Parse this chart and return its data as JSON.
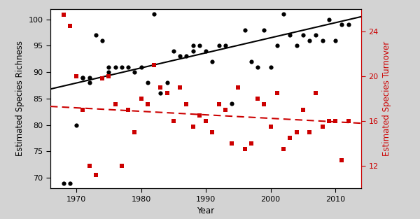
{
  "xlabel": "Year",
  "ylabel_left": "Estimated Species Richness",
  "ylabel_right": "Estimated Species Turnover",
  "xlim": [
    1966,
    2014
  ],
  "ylim_left": [
    68,
    102
  ],
  "ylim_right": [
    10,
    26
  ],
  "xticks": [
    1970,
    1980,
    1990,
    2000,
    2010
  ],
  "yticks_left": [
    70,
    75,
    80,
    85,
    90,
    95,
    100
  ],
  "yticks_right": [
    12,
    16,
    20,
    24
  ],
  "richness_points": [
    [
      1968,
      69
    ],
    [
      1969,
      69
    ],
    [
      1970,
      80
    ],
    [
      1971,
      89
    ],
    [
      1971,
      89
    ],
    [
      1972,
      89
    ],
    [
      1972,
      88
    ],
    [
      1973,
      97
    ],
    [
      1974,
      96
    ],
    [
      1975,
      91
    ],
    [
      1975,
      90
    ],
    [
      1976,
      91
    ],
    [
      1977,
      91
    ],
    [
      1978,
      91
    ],
    [
      1979,
      90
    ],
    [
      1980,
      91
    ],
    [
      1981,
      88
    ],
    [
      1982,
      101
    ],
    [
      1983,
      86
    ],
    [
      1984,
      88
    ],
    [
      1985,
      94
    ],
    [
      1986,
      93
    ],
    [
      1987,
      93
    ],
    [
      1988,
      95
    ],
    [
      1988,
      94
    ],
    [
      1989,
      95
    ],
    [
      1990,
      94
    ],
    [
      1991,
      92
    ],
    [
      1992,
      95
    ],
    [
      1993,
      95
    ],
    [
      1994,
      84
    ],
    [
      1996,
      98
    ],
    [
      1997,
      92
    ],
    [
      1998,
      91
    ],
    [
      1999,
      98
    ],
    [
      2000,
      91
    ],
    [
      2001,
      95
    ],
    [
      2002,
      101
    ],
    [
      2003,
      97
    ],
    [
      2004,
      95
    ],
    [
      2005,
      97
    ],
    [
      2006,
      96
    ],
    [
      2007,
      97
    ],
    [
      2008,
      96
    ],
    [
      2009,
      100
    ],
    [
      2010,
      96
    ],
    [
      2011,
      99
    ],
    [
      2012,
      99
    ]
  ],
  "turnover_points": [
    [
      1968,
      25.5
    ],
    [
      1969,
      24.5
    ],
    [
      1970,
      20.0
    ],
    [
      1971,
      17.0
    ],
    [
      1972,
      12.0
    ],
    [
      1973,
      11.2
    ],
    [
      1974,
      19.8
    ],
    [
      1975,
      20.0
    ],
    [
      1976,
      17.5
    ],
    [
      1977,
      12.0
    ],
    [
      1978,
      17.0
    ],
    [
      1979,
      15.0
    ],
    [
      1980,
      18.0
    ],
    [
      1981,
      17.5
    ],
    [
      1982,
      21.0
    ],
    [
      1983,
      19.0
    ],
    [
      1984,
      18.5
    ],
    [
      1985,
      16.0
    ],
    [
      1986,
      19.0
    ],
    [
      1987,
      17.5
    ],
    [
      1988,
      15.5
    ],
    [
      1989,
      16.5
    ],
    [
      1990,
      16.0
    ],
    [
      1991,
      15.0
    ],
    [
      1992,
      17.5
    ],
    [
      1993,
      17.0
    ],
    [
      1994,
      14.0
    ],
    [
      1995,
      19.0
    ],
    [
      1996,
      13.5
    ],
    [
      1997,
      14.0
    ],
    [
      1998,
      18.0
    ],
    [
      1999,
      17.5
    ],
    [
      2000,
      15.5
    ],
    [
      2001,
      18.5
    ],
    [
      2002,
      13.5
    ],
    [
      2003,
      14.5
    ],
    [
      2004,
      15.0
    ],
    [
      2005,
      17.0
    ],
    [
      2006,
      15.0
    ],
    [
      2007,
      18.5
    ],
    [
      2008,
      15.5
    ],
    [
      2009,
      16.0
    ],
    [
      2010,
      16.0
    ],
    [
      2011,
      12.5
    ],
    [
      2012,
      16.0
    ]
  ],
  "richness_line_x": [
    1966,
    2014
  ],
  "richness_line_y": [
    86.8,
    100.5
  ],
  "turnover_line_x": [
    1966,
    2014
  ],
  "turnover_line_y": [
    17.3,
    15.8
  ],
  "richness_line_color": "#000000",
  "turnover_line_color": "#cc0000",
  "richness_point_color": "#000000",
  "turnover_point_color": "#cc0000",
  "outer_bg_color": "#d3d3d3",
  "plot_bg_color": "#ffffff",
  "fontsize_label": 8.5,
  "fontsize_tick": 8
}
